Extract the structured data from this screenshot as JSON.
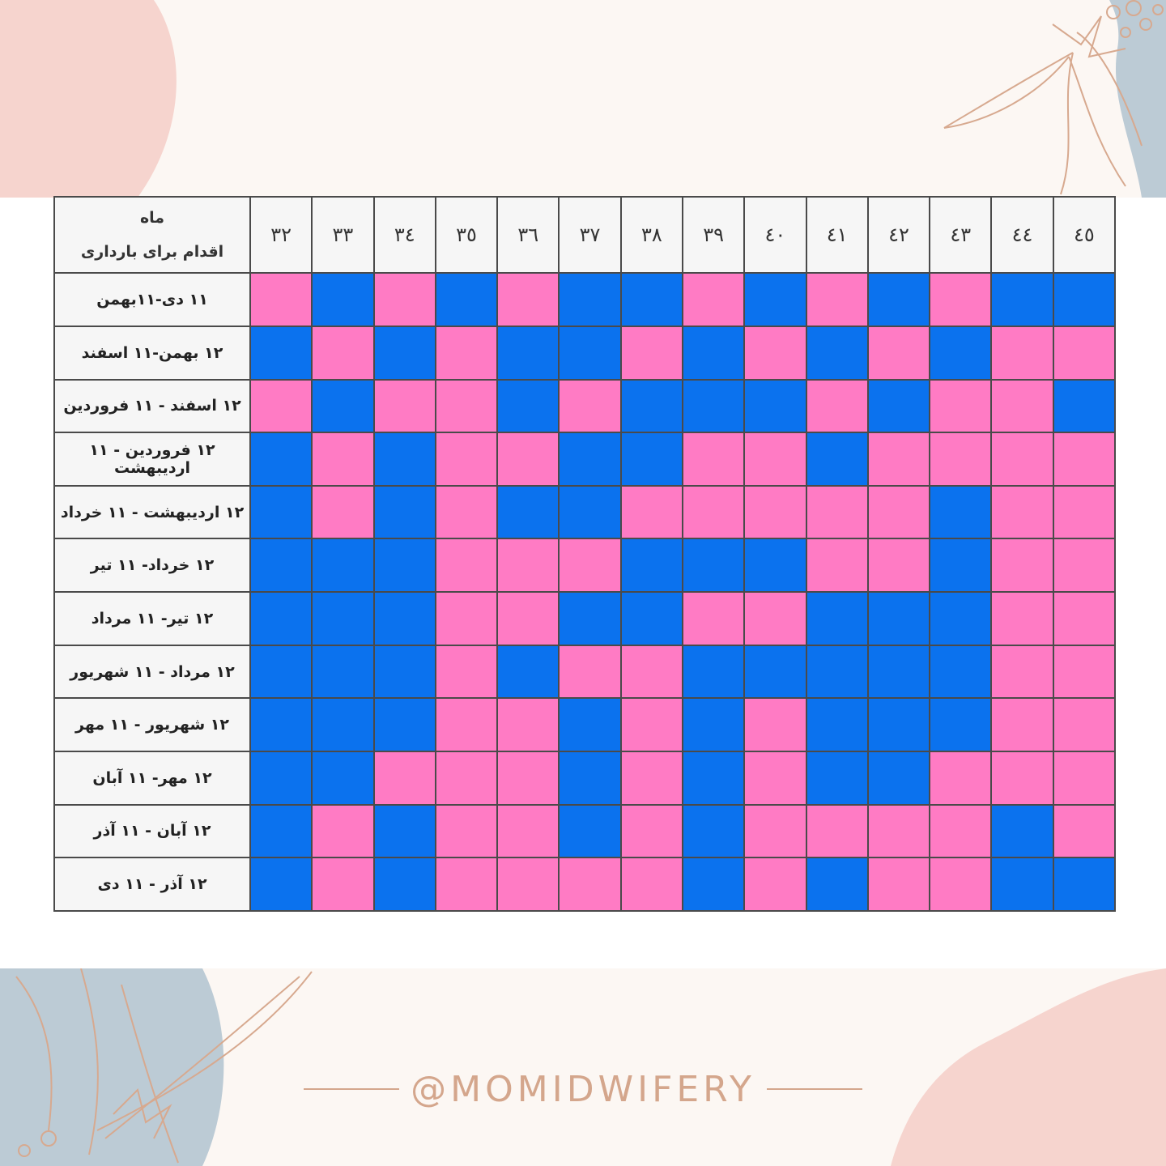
{
  "header": {
    "corner_top": "ماه",
    "corner_bottom": "اقدام برای بارداری",
    "ages": [
      "۳۲",
      "۳۳",
      "۳٤",
      "۳٥",
      "۳٦",
      "۳۷",
      "۳۸",
      "۳۹",
      "٤٠",
      "٤۱",
      "٤۲",
      "٤۳",
      "٤٤",
      "٤٥"
    ]
  },
  "rows": [
    {
      "label": "۱۱ دی-۱۱بهمن",
      "cells": [
        "P",
        "B",
        "P",
        "B",
        "P",
        "B",
        "B",
        "P",
        "B",
        "P",
        "B",
        "P",
        "B",
        "B"
      ]
    },
    {
      "label": "۱۲ بهمن-۱۱ اسفند",
      "cells": [
        "B",
        "P",
        "B",
        "P",
        "B",
        "B",
        "P",
        "B",
        "P",
        "B",
        "P",
        "B",
        "P",
        "P"
      ]
    },
    {
      "label": "۱۲ اسفند - ۱۱ فروردین",
      "cells": [
        "P",
        "B",
        "P",
        "P",
        "B",
        "P",
        "B",
        "B",
        "B",
        "P",
        "B",
        "P",
        "P",
        "B"
      ]
    },
    {
      "label": "۱۲ فروردین - ۱۱ اردیبهشت",
      "cells": [
        "B",
        "P",
        "B",
        "P",
        "P",
        "B",
        "B",
        "P",
        "P",
        "B",
        "P",
        "P",
        "P",
        "P"
      ]
    },
    {
      "label": "۱۲ اردیبهشت - ۱۱ خرداد",
      "cells": [
        "B",
        "P",
        "B",
        "P",
        "B",
        "B",
        "P",
        "P",
        "P",
        "P",
        "P",
        "B",
        "P",
        "P"
      ]
    },
    {
      "label": "۱۲ خرداد- ۱۱ تیر",
      "cells": [
        "B",
        "B",
        "B",
        "P",
        "P",
        "P",
        "B",
        "B",
        "B",
        "P",
        "P",
        "B",
        "P",
        "P"
      ]
    },
    {
      "label": "۱۲ تیر- ۱۱ مرداد",
      "cells": [
        "B",
        "B",
        "B",
        "P",
        "P",
        "B",
        "B",
        "P",
        "P",
        "B",
        "B",
        "B",
        "P",
        "P"
      ]
    },
    {
      "label": "۱۲ مرداد - ۱۱ شهریور",
      "cells": [
        "B",
        "B",
        "B",
        "P",
        "B",
        "P",
        "P",
        "B",
        "B",
        "B",
        "B",
        "B",
        "P",
        "P"
      ]
    },
    {
      "label": "۱۲ شهریور - ۱۱ مهر",
      "cells": [
        "B",
        "B",
        "B",
        "P",
        "P",
        "B",
        "P",
        "B",
        "P",
        "B",
        "B",
        "B",
        "P",
        "P"
      ]
    },
    {
      "label": "۱۲ مهر- ۱۱ آبان",
      "cells": [
        "B",
        "B",
        "P",
        "P",
        "P",
        "B",
        "P",
        "B",
        "P",
        "B",
        "B",
        "P",
        "P",
        "P"
      ]
    },
    {
      "label": "۱۲ آبان - ۱۱ آذر",
      "cells": [
        "B",
        "P",
        "B",
        "P",
        "P",
        "B",
        "P",
        "B",
        "P",
        "P",
        "P",
        "P",
        "B",
        "P"
      ]
    },
    {
      "label": "۱۲ آذر - ۱۱ دی",
      "cells": [
        "B",
        "P",
        "B",
        "P",
        "P",
        "P",
        "P",
        "B",
        "P",
        "B",
        "P",
        "P",
        "B",
        "B"
      ]
    }
  ],
  "colors": {
    "pink": "#ff7bc4",
    "blue": "#0b72ee",
    "brand": "#d4a68c"
  },
  "brand": {
    "handle": "@MOMIDWIFERY"
  }
}
